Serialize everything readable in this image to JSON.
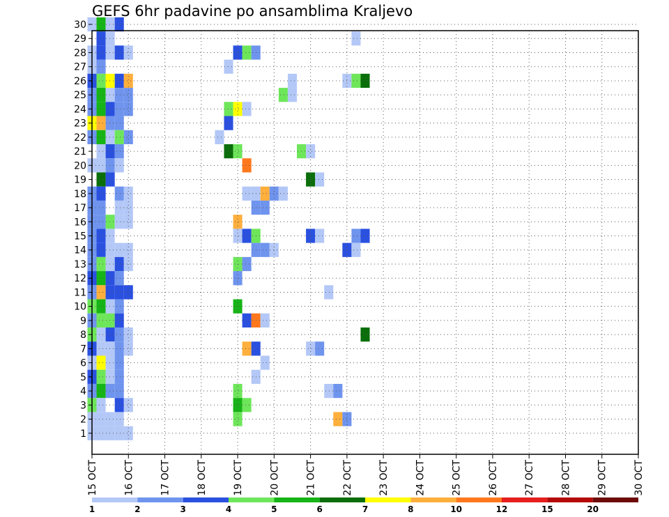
{
  "chart_data": {
    "type": "heatmap",
    "title": "GEFS 6hr padavine po ansamblima Kraljevo",
    "xlabel": "",
    "ylabel": "",
    "x_tick_labels": [
      "15 OCT",
      "16 OCT",
      "17 OCT",
      "18 OCT",
      "19 OCT",
      "20 OCT",
      "21 OCT",
      "22 OCT",
      "23 OCT",
      "24 OCT",
      "25 OCT",
      "26 OCT",
      "27 OCT",
      "28 OCT",
      "29 OCT",
      "30 OCT"
    ],
    "y_tick_labels": [
      "1",
      "2",
      "3",
      "4",
      "5",
      "6",
      "7",
      "8",
      "9",
      "10",
      "11",
      "12",
      "13",
      "14",
      "15",
      "16",
      "17",
      "18",
      "19",
      "20",
      "21",
      "22",
      "23",
      "24",
      "25",
      "26",
      "27",
      "28",
      "29",
      "30"
    ],
    "ylim": [
      0,
      30
    ],
    "x_range_days": [
      0,
      15
    ],
    "time_step_hours": 6,
    "grid": "dotted",
    "colorbar": {
      "position": "bottom",
      "labels": [
        "1",
        "2",
        "3",
        "4",
        "5",
        "6",
        "7",
        "8",
        "10",
        "12",
        "15",
        "20"
      ],
      "colors": [
        "#b4c8f7",
        "#6f94ee",
        "#2a50e0",
        "#6ee65a",
        "#16b416",
        "#0a6e0a",
        "#ffff00",
        "#ffaf3c",
        "#ff781e",
        "#e61e1e",
        "#b40a0a",
        "#6e0a0a"
      ]
    },
    "cells_note": "each entry = [member(row 0..30), 6h step index from 15 OCT 00Z, precipitation mm]",
    "cells": [
      [
        30,
        0,
        1.5
      ],
      [
        30,
        1,
        5
      ],
      [
        30,
        2,
        1.5
      ],
      [
        30,
        3,
        3.5
      ],
      [
        29,
        1,
        3.5
      ],
      [
        29,
        2,
        1.5
      ],
      [
        29,
        29,
        1.5
      ],
      [
        28,
        0,
        1.5
      ],
      [
        28,
        1,
        3.5
      ],
      [
        28,
        2,
        1.5
      ],
      [
        28,
        3,
        3.5
      ],
      [
        28,
        4,
        1.5
      ],
      [
        28,
        16,
        3.5
      ],
      [
        28,
        17,
        4.5
      ],
      [
        28,
        18,
        2.5
      ],
      [
        27,
        0,
        1.5
      ],
      [
        27,
        1,
        2.5
      ],
      [
        27,
        15,
        1.5
      ],
      [
        26,
        0,
        3.5
      ],
      [
        26,
        1,
        4.5
      ],
      [
        26,
        2,
        7.5
      ],
      [
        26,
        3,
        3.5
      ],
      [
        26,
        4,
        9
      ],
      [
        26,
        22,
        1.5
      ],
      [
        26,
        28,
        1.5
      ],
      [
        26,
        29,
        4.5
      ],
      [
        26,
        30,
        6.5
      ],
      [
        25,
        0,
        2.5
      ],
      [
        25,
        1,
        5.5
      ],
      [
        25,
        2,
        1.5
      ],
      [
        25,
        3,
        2.5
      ],
      [
        25,
        4,
        2.5
      ],
      [
        25,
        21,
        4.5
      ],
      [
        25,
        22,
        1.5
      ],
      [
        24,
        0,
        2.5
      ],
      [
        24,
        1,
        5.5
      ],
      [
        24,
        2,
        3.5
      ],
      [
        24,
        3,
        2.5
      ],
      [
        24,
        4,
        2.5
      ],
      [
        24,
        15,
        4.5
      ],
      [
        24,
        16,
        7.5
      ],
      [
        24,
        17,
        1.5
      ],
      [
        23,
        0,
        7.5
      ],
      [
        23,
        1,
        9
      ],
      [
        23,
        2,
        2.5
      ],
      [
        23,
        3,
        2.5
      ],
      [
        23,
        15,
        3.5
      ],
      [
        22,
        0,
        2.5
      ],
      [
        22,
        1,
        5.5
      ],
      [
        22,
        2,
        1.5
      ],
      [
        22,
        3,
        4.5
      ],
      [
        22,
        4,
        2.5
      ],
      [
        22,
        14,
        1.5
      ],
      [
        21,
        1,
        1.5
      ],
      [
        21,
        2,
        3.5
      ],
      [
        21,
        3,
        2.5
      ],
      [
        21,
        15,
        6.5
      ],
      [
        21,
        16,
        4.5
      ],
      [
        21,
        23,
        4.5
      ],
      [
        21,
        24,
        1.5
      ],
      [
        20,
        0,
        1.5
      ],
      [
        20,
        1,
        1.5
      ],
      [
        20,
        2,
        2.5
      ],
      [
        20,
        3,
        1.5
      ],
      [
        20,
        17,
        10.5
      ],
      [
        19,
        1,
        6.5
      ],
      [
        19,
        2,
        3.5
      ],
      [
        19,
        24,
        6.5
      ],
      [
        19,
        25,
        1.5
      ],
      [
        18,
        0,
        2.5
      ],
      [
        18,
        1,
        3.5
      ],
      [
        18,
        3,
        2.5
      ],
      [
        18,
        4,
        1.5
      ],
      [
        18,
        17,
        1.5
      ],
      [
        18,
        18,
        1.5
      ],
      [
        18,
        19,
        9
      ],
      [
        18,
        20,
        2.5
      ],
      [
        18,
        21,
        1.5
      ],
      [
        17,
        0,
        2.5
      ],
      [
        17,
        1,
        2.5
      ],
      [
        17,
        3,
        1.5
      ],
      [
        17,
        4,
        1.5
      ],
      [
        17,
        18,
        2.5
      ],
      [
        17,
        19,
        2.5
      ],
      [
        16,
        0,
        2.5
      ],
      [
        16,
        1,
        2.5
      ],
      [
        16,
        2,
        4.5
      ],
      [
        16,
        3,
        1.5
      ],
      [
        16,
        4,
        1.5
      ],
      [
        16,
        16,
        9
      ],
      [
        15,
        0,
        2.5
      ],
      [
        15,
        1,
        3.5
      ],
      [
        15,
        2,
        1.5
      ],
      [
        15,
        16,
        1.5
      ],
      [
        15,
        17,
        3.5
      ],
      [
        15,
        18,
        4.5
      ],
      [
        15,
        24,
        3.5
      ],
      [
        15,
        25,
        1.5
      ],
      [
        15,
        29,
        2.5
      ],
      [
        15,
        30,
        3.5
      ],
      [
        14,
        0,
        2.5
      ],
      [
        14,
        1,
        3.5
      ],
      [
        14,
        2,
        1.5
      ],
      [
        14,
        3,
        1.5
      ],
      [
        14,
        4,
        1.5
      ],
      [
        14,
        18,
        2.5
      ],
      [
        14,
        19,
        2.5
      ],
      [
        14,
        20,
        1.5
      ],
      [
        14,
        28,
        3.5
      ],
      [
        14,
        29,
        1.5
      ],
      [
        13,
        0,
        2.5
      ],
      [
        13,
        1,
        4.5
      ],
      [
        13,
        2,
        1.5
      ],
      [
        13,
        3,
        3.5
      ],
      [
        13,
        4,
        1.5
      ],
      [
        13,
        16,
        4.5
      ],
      [
        13,
        17,
        2.5
      ],
      [
        12,
        0,
        3.5
      ],
      [
        12,
        1,
        5.5
      ],
      [
        12,
        2,
        3.5
      ],
      [
        12,
        3,
        2.5
      ],
      [
        12,
        16,
        2.5
      ],
      [
        11,
        0,
        2.5
      ],
      [
        11,
        1,
        9
      ],
      [
        11,
        2,
        3.5
      ],
      [
        11,
        3,
        3.5
      ],
      [
        11,
        4,
        3.5
      ],
      [
        11,
        26,
        1.5
      ],
      [
        10,
        0,
        4.5
      ],
      [
        10,
        1,
        5.5
      ],
      [
        10,
        2,
        1.5
      ],
      [
        10,
        3,
        2.5
      ],
      [
        10,
        16,
        5.5
      ],
      [
        9,
        0,
        2.5
      ],
      [
        9,
        1,
        4.5
      ],
      [
        9,
        2,
        4.5
      ],
      [
        9,
        3,
        3.5
      ],
      [
        9,
        17,
        3.5
      ],
      [
        9,
        18,
        10.5
      ],
      [
        9,
        19,
        1.5
      ],
      [
        8,
        0,
        4.5
      ],
      [
        8,
        1,
        1.5
      ],
      [
        8,
        2,
        3.5
      ],
      [
        8,
        3,
        2.5
      ],
      [
        8,
        4,
        1.5
      ],
      [
        8,
        30,
        6.5
      ],
      [
        7,
        0,
        3.5
      ],
      [
        7,
        1,
        1.5
      ],
      [
        7,
        2,
        1.5
      ],
      [
        7,
        3,
        2.5
      ],
      [
        7,
        4,
        1.5
      ],
      [
        7,
        17,
        9
      ],
      [
        7,
        18,
        3.5
      ],
      [
        7,
        24,
        1.5
      ],
      [
        7,
        25,
        2.5
      ],
      [
        6,
        0,
        1.5
      ],
      [
        6,
        1,
        7.5
      ],
      [
        6,
        2,
        1.5
      ],
      [
        6,
        3,
        2.5
      ],
      [
        6,
        19,
        1.5
      ],
      [
        5,
        0,
        3.5
      ],
      [
        5,
        1,
        4.5
      ],
      [
        5,
        2,
        1.5
      ],
      [
        5,
        3,
        2.5
      ],
      [
        5,
        18,
        1.5
      ],
      [
        4,
        0,
        2.5
      ],
      [
        4,
        1,
        5.5
      ],
      [
        4,
        2,
        2.5
      ],
      [
        4,
        3,
        2.5
      ],
      [
        4,
        16,
        4.5
      ],
      [
        4,
        26,
        1.5
      ],
      [
        4,
        27,
        2.5
      ],
      [
        3,
        0,
        4.5
      ],
      [
        3,
        1,
        1.5
      ],
      [
        3,
        3,
        3.5
      ],
      [
        3,
        4,
        1.5
      ],
      [
        3,
        16,
        5.5
      ],
      [
        3,
        17,
        4.5
      ],
      [
        2,
        0,
        1.5
      ],
      [
        2,
        1,
        1.5
      ],
      [
        2,
        2,
        1.5
      ],
      [
        2,
        3,
        1.5
      ],
      [
        2,
        16,
        4.5
      ],
      [
        2,
        27,
        9
      ],
      [
        2,
        28,
        2.5
      ],
      [
        1,
        0,
        1.5
      ],
      [
        1,
        1,
        1.5
      ],
      [
        1,
        2,
        1.5
      ],
      [
        1,
        3,
        1.5
      ],
      [
        1,
        4,
        1.5
      ]
    ]
  }
}
